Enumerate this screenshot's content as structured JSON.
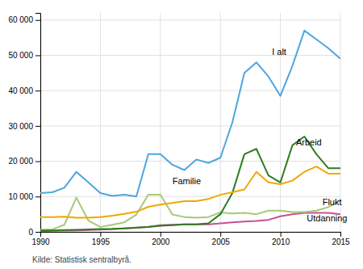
{
  "chart_data": {
    "type": "line",
    "x": [
      1990,
      1991,
      1992,
      1993,
      1994,
      1995,
      1996,
      1997,
      1998,
      1999,
      2000,
      2001,
      2002,
      2003,
      2004,
      2005,
      2006,
      2007,
      2008,
      2009,
      2010,
      2011,
      2012,
      2013,
      2014,
      2015
    ],
    "series": [
      {
        "color": "#4da6df",
        "values": [
          11000,
          11200,
          12500,
          17000,
          14000,
          11000,
          10200,
          10500,
          10000,
          22000,
          22000,
          19000,
          17500,
          20500,
          19500,
          21000,
          31000,
          45000,
          48000,
          44000,
          38500,
          47000,
          57000,
          54500,
          52000,
          49000
        ]
      },
      {
        "color": "#f0a800",
        "values": [
          4200,
          4200,
          4300,
          4000,
          4000,
          4200,
          4600,
          5100,
          5700,
          7100,
          7700,
          8200,
          8700,
          8700,
          9300,
          10500,
          11200,
          12000,
          17000,
          14000,
          13500,
          14500,
          17000,
          18500,
          16500,
          16500
        ]
      },
      {
        "color": "#2e7d1e",
        "values": [
          400,
          400,
          500,
          600,
          700,
          800,
          850,
          1000,
          1200,
          1400,
          1700,
          1900,
          2100,
          2100,
          2400,
          5000,
          11000,
          22000,
          23500,
          16000,
          14000,
          24500,
          27000,
          22000,
          18000,
          18000
        ]
      },
      {
        "color": "#a8c878",
        "values": [
          600,
          700,
          2000,
          9700,
          3200,
          1400,
          2000,
          2700,
          4900,
          10500,
          10500,
          4900,
          4200,
          4000,
          4200,
          5500,
          5200,
          5400,
          5000,
          6000,
          6000,
          5600,
          5600,
          6000,
          7000,
          9000
        ]
      },
      {
        "color": "#c85090",
        "values": [
          200,
          300,
          350,
          400,
          500,
          650,
          750,
          950,
          1150,
          1450,
          1900,
          2000,
          2100,
          2100,
          2100,
          2400,
          2700,
          2900,
          3100,
          3400,
          4400,
          5000,
          5400,
          5400,
          5400,
          5000
        ]
      }
    ],
    "annotations": [
      {
        "text": "I alt",
        "x": 2009.3,
        "y": 50000
      },
      {
        "text": "Familie",
        "x": 2001.0,
        "y": 13500
      },
      {
        "text": "Arbeid",
        "x": 2011.3,
        "y": 24500
      },
      {
        "text": "Flukt",
        "x": 2013.5,
        "y": 7500
      },
      {
        "text": "Utdanning",
        "x": 2012.2,
        "y": 3000
      }
    ],
    "xlim": [
      1990,
      2015
    ],
    "xticks": [
      1990,
      1995,
      2000,
      2005,
      2010,
      2015
    ],
    "ylim": [
      0,
      62000
    ],
    "yticks": [
      0,
      {
        "value": 10000,
        "label": "10 000"
      },
      {
        "value": 20000,
        "label": "20 000"
      },
      {
        "value": 30000,
        "label": "30 000"
      },
      {
        "value": 40000,
        "label": "40 000"
      },
      {
        "value": 50000,
        "label": "50 000"
      },
      {
        "value": 60000,
        "label": "60 000"
      }
    ],
    "grid": true,
    "source": "Kilde: Statistisk sentralbyrå."
  }
}
